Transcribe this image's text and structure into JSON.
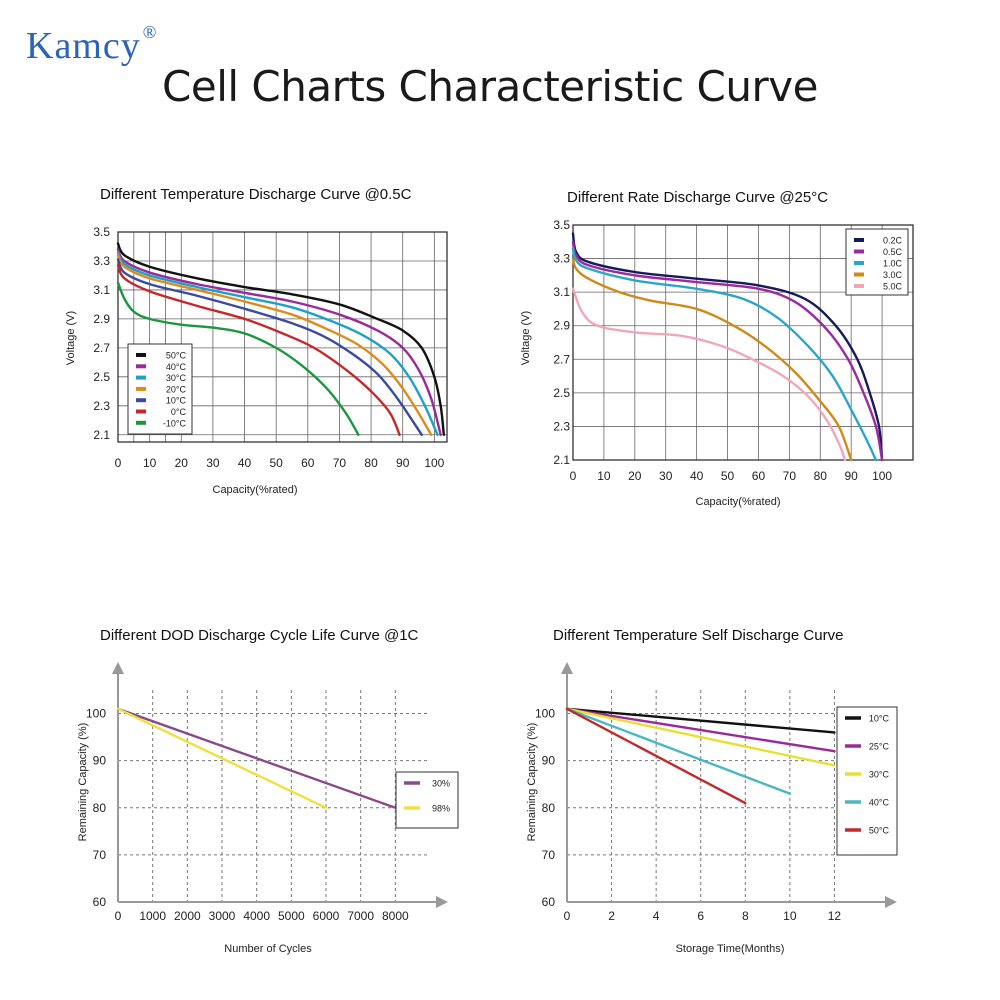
{
  "brand": {
    "name": "Kamcy",
    "mark": "®"
  },
  "page_title": "Cell Charts Characteristic Curve",
  "colors": {
    "brand": "#2a63b8",
    "grid": "#555555"
  },
  "chart_data": [
    {
      "id": "temp-discharge",
      "type": "line",
      "title": "Different Temperature Discharge Curve @0.5C",
      "xlabel": "Capacity(%rated)",
      "ylabel": "Voltage (V)",
      "xlim": [
        0,
        104
      ],
      "ylim": [
        2.05,
        3.5
      ],
      "xticks": [
        0,
        10,
        20,
        30,
        40,
        50,
        60,
        70,
        80,
        90,
        100
      ],
      "yticks": [
        2.1,
        2.3,
        2.5,
        2.7,
        2.9,
        3.1,
        3.3,
        3.5
      ],
      "legend": "inside-lower-left",
      "series": [
        {
          "name": "50°C",
          "color": "#111111",
          "points": [
            [
              0,
              3.42
            ],
            [
              2,
              3.34
            ],
            [
              10,
              3.26
            ],
            [
              25,
              3.18
            ],
            [
              40,
              3.12
            ],
            [
              55,
              3.07
            ],
            [
              70,
              3.0
            ],
            [
              82,
              2.9
            ],
            [
              90,
              2.82
            ],
            [
              96,
              2.7
            ],
            [
              100,
              2.5
            ],
            [
              102,
              2.3
            ],
            [
              103,
              2.1
            ]
          ]
        },
        {
          "name": "40°C",
          "color": "#9a2a9a",
          "points": [
            [
              0,
              3.38
            ],
            [
              2,
              3.3
            ],
            [
              10,
              3.22
            ],
            [
              25,
              3.14
            ],
            [
              40,
              3.08
            ],
            [
              55,
              3.02
            ],
            [
              70,
              2.93
            ],
            [
              82,
              2.82
            ],
            [
              90,
              2.7
            ],
            [
              95,
              2.55
            ],
            [
              99,
              2.35
            ],
            [
              102,
              2.1
            ]
          ]
        },
        {
          "name": "30°C",
          "color": "#1ea1c8",
          "points": [
            [
              0,
              3.36
            ],
            [
              2,
              3.28
            ],
            [
              10,
              3.2
            ],
            [
              25,
              3.12
            ],
            [
              40,
              3.05
            ],
            [
              55,
              2.98
            ],
            [
              68,
              2.88
            ],
            [
              78,
              2.78
            ],
            [
              86,
              2.66
            ],
            [
              92,
              2.5
            ],
            [
              97,
              2.3
            ],
            [
              101,
              2.1
            ]
          ]
        },
        {
          "name": "20°C",
          "color": "#e08a1a",
          "points": [
            [
              0,
              3.34
            ],
            [
              2,
              3.26
            ],
            [
              10,
              3.18
            ],
            [
              25,
              3.1
            ],
            [
              40,
              3.02
            ],
            [
              55,
              2.93
            ],
            [
              66,
              2.83
            ],
            [
              76,
              2.72
            ],
            [
              84,
              2.58
            ],
            [
              90,
              2.42
            ],
            [
              95,
              2.25
            ],
            [
              99,
              2.1
            ]
          ]
        },
        {
          "name": "10°C",
          "color": "#3a4aa0",
          "points": [
            [
              0,
              3.31
            ],
            [
              2,
              3.22
            ],
            [
              10,
              3.14
            ],
            [
              25,
              3.06
            ],
            [
              40,
              2.97
            ],
            [
              55,
              2.87
            ],
            [
              65,
              2.78
            ],
            [
              74,
              2.66
            ],
            [
              82,
              2.52
            ],
            [
              88,
              2.36
            ],
            [
              93,
              2.2
            ],
            [
              96,
              2.1
            ]
          ]
        },
        {
          "name": "0°C",
          "color": "#c8262a",
          "points": [
            [
              0,
              3.27
            ],
            [
              2,
              3.18
            ],
            [
              10,
              3.09
            ],
            [
              25,
              2.99
            ],
            [
              40,
              2.9
            ],
            [
              52,
              2.8
            ],
            [
              62,
              2.7
            ],
            [
              72,
              2.55
            ],
            [
              80,
              2.4
            ],
            [
              86,
              2.25
            ],
            [
              89,
              2.1
            ]
          ]
        },
        {
          "name": "-10°C",
          "color": "#1e9640",
          "points": [
            [
              0,
              3.15
            ],
            [
              2,
              3.04
            ],
            [
              5,
              2.95
            ],
            [
              10,
              2.9
            ],
            [
              20,
              2.86
            ],
            [
              30,
              2.84
            ],
            [
              40,
              2.8
            ],
            [
              50,
              2.7
            ],
            [
              58,
              2.58
            ],
            [
              66,
              2.42
            ],
            [
              72,
              2.25
            ],
            [
              76,
              2.1
            ]
          ]
        }
      ]
    },
    {
      "id": "rate-discharge",
      "type": "line",
      "title": "Different Rate Discharge Curve @25°C",
      "xlabel": "Capacity(%rated)",
      "ylabel": "Voltage (V)",
      "xlim": [
        0,
        110
      ],
      "ylim": [
        2.1,
        3.5
      ],
      "xticks": [
        0,
        10,
        20,
        30,
        40,
        50,
        60,
        70,
        80,
        90,
        100
      ],
      "yticks": [
        2.1,
        2.3,
        2.5,
        2.7,
        2.9,
        3.1,
        3.3,
        3.5
      ],
      "legend": "top-right",
      "series": [
        {
          "name": "0.2C",
          "color": "#1a1a5a",
          "points": [
            [
              0,
              3.45
            ],
            [
              1,
              3.34
            ],
            [
              5,
              3.28
            ],
            [
              20,
              3.22
            ],
            [
              40,
              3.18
            ],
            [
              60,
              3.14
            ],
            [
              75,
              3.06
            ],
            [
              85,
              2.9
            ],
            [
              92,
              2.7
            ],
            [
              96,
              2.5
            ],
            [
              99,
              2.3
            ],
            [
              100,
              2.1
            ]
          ]
        },
        {
          "name": "0.5C",
          "color": "#9a2aa0",
          "points": [
            [
              0,
              3.4
            ],
            [
              1,
              3.32
            ],
            [
              5,
              3.26
            ],
            [
              20,
              3.2
            ],
            [
              40,
              3.16
            ],
            [
              60,
              3.12
            ],
            [
              72,
              3.04
            ],
            [
              82,
              2.88
            ],
            [
              89,
              2.7
            ],
            [
              94,
              2.5
            ],
            [
              98,
              2.3
            ],
            [
              100,
              2.1
            ]
          ]
        },
        {
          "name": "1.0C",
          "color": "#2aa6c8",
          "points": [
            [
              0,
              3.36
            ],
            [
              1,
              3.29
            ],
            [
              5,
              3.24
            ],
            [
              20,
              3.17
            ],
            [
              40,
              3.12
            ],
            [
              55,
              3.06
            ],
            [
              66,
              2.95
            ],
            [
              76,
              2.78
            ],
            [
              84,
              2.6
            ],
            [
              90,
              2.4
            ],
            [
              95,
              2.22
            ],
            [
              98,
              2.1
            ]
          ]
        },
        {
          "name": "3.0C",
          "color": "#d08a1a",
          "points": [
            [
              0,
              3.3
            ],
            [
              1,
              3.24
            ],
            [
              5,
              3.18
            ],
            [
              15,
              3.1
            ],
            [
              25,
              3.05
            ],
            [
              40,
              3.0
            ],
            [
              52,
              2.9
            ],
            [
              62,
              2.78
            ],
            [
              72,
              2.62
            ],
            [
              80,
              2.45
            ],
            [
              86,
              2.3
            ],
            [
              90,
              2.1
            ]
          ]
        },
        {
          "name": "5.0C",
          "color": "#f0a8b8",
          "points": [
            [
              0,
              3.12
            ],
            [
              3,
              2.98
            ],
            [
              8,
              2.9
            ],
            [
              20,
              2.86
            ],
            [
              35,
              2.84
            ],
            [
              48,
              2.78
            ],
            [
              58,
              2.7
            ],
            [
              68,
              2.6
            ],
            [
              76,
              2.48
            ],
            [
              82,
              2.34
            ],
            [
              86,
              2.2
            ],
            [
              88,
              2.1
            ]
          ]
        }
      ]
    },
    {
      "id": "dod-cycle-life",
      "type": "line",
      "title": "Different DOD Discharge Cycle Life Curve @1C",
      "xlabel": "Number of Cycles",
      "ylabel": "Remaining Capacity (%)",
      "xlim": [
        0,
        9000
      ],
      "ylim": [
        60,
        105
      ],
      "xticks": [
        0,
        1000,
        2000,
        3000,
        4000,
        5000,
        6000,
        7000,
        8000
      ],
      "yticks": [
        60,
        70,
        80,
        90,
        100
      ],
      "legend": "right",
      "series": [
        {
          "name": "30%",
          "color": "#8a4a8a",
          "points": [
            [
              0,
              101
            ],
            [
              8000,
              80
            ]
          ]
        },
        {
          "name": "98%",
          "color": "#f0e040",
          "points": [
            [
              0,
              101
            ],
            [
              6000,
              80
            ]
          ]
        }
      ]
    },
    {
      "id": "temp-self-discharge",
      "type": "line",
      "title": "Different Temperature Self Discharge Curve",
      "xlabel": "Storage Time(Months)",
      "ylabel": "Remaining Capacity (%)",
      "xlim": [
        0,
        14
      ],
      "ylim": [
        60,
        105
      ],
      "xticks": [
        0,
        2,
        4,
        6,
        8,
        10,
        12
      ],
      "yticks": [
        60,
        70,
        80,
        90,
        100
      ],
      "legend": "right",
      "series": [
        {
          "name": "10°C",
          "color": "#111111",
          "points": [
            [
              0,
              101
            ],
            [
              12,
              96
            ]
          ]
        },
        {
          "name": "25°C",
          "color": "#9a2a9a",
          "points": [
            [
              0,
              101
            ],
            [
              12,
              92
            ]
          ]
        },
        {
          "name": "30°C",
          "color": "#e8e030",
          "points": [
            [
              0,
              101
            ],
            [
              12,
              89
            ]
          ]
        },
        {
          "name": "40°C",
          "color": "#4ab8c0",
          "points": [
            [
              0,
              101
            ],
            [
              10,
              83
            ]
          ]
        },
        {
          "name": "50°C",
          "color": "#c02a2a",
          "points": [
            [
              0,
              101
            ],
            [
              8,
              81
            ]
          ]
        }
      ]
    }
  ]
}
